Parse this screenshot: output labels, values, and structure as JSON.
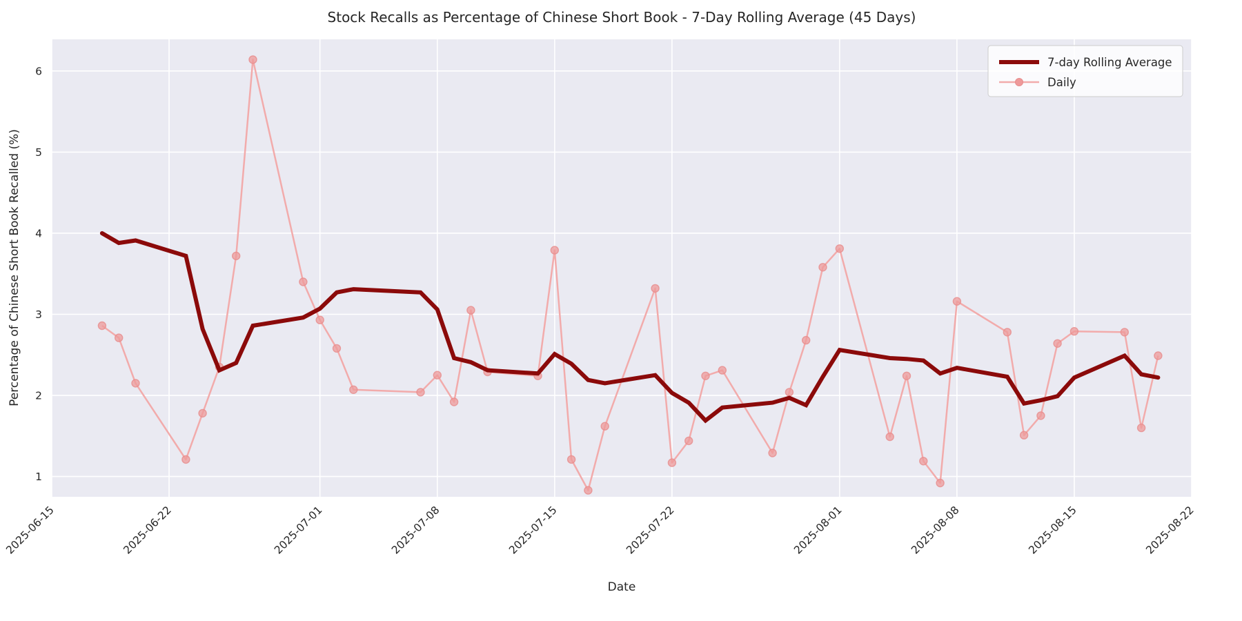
{
  "page": {
    "background": "#ffffff"
  },
  "chart_data": {
    "type": "line",
    "title": "Stock Recalls as Percentage of Chinese Short Book - 7-Day Rolling Average (45 Days)",
    "xlabel": "Date",
    "ylabel": "Percentage of Chinese Short Book Recalled (%)",
    "plot_background": "#eaeaf2",
    "grid": true,
    "grid_color": "#ffffff",
    "legend_position": "upper right",
    "x_axis_start": "2025-06-15",
    "x_axis_end": "2025-08-22",
    "x_tick_labels": [
      "2025-06-15",
      "2025-06-22",
      "2025-07-01",
      "2025-07-08",
      "2025-07-15",
      "2025-07-22",
      "2025-08-01",
      "2025-08-08",
      "2025-08-15",
      "2025-08-22"
    ],
    "y_ticks": [
      1,
      2,
      3,
      4,
      5,
      6
    ],
    "ylim": [
      0.75,
      6.39
    ],
    "dates": [
      "2025-06-18",
      "2025-06-19",
      "2025-06-20",
      "2025-06-23",
      "2025-06-24",
      "2025-06-25",
      "2025-06-26",
      "2025-06-27",
      "2025-06-30",
      "2025-07-01",
      "2025-07-02",
      "2025-07-03",
      "2025-07-07",
      "2025-07-08",
      "2025-07-09",
      "2025-07-10",
      "2025-07-11",
      "2025-07-14",
      "2025-07-15",
      "2025-07-16",
      "2025-07-17",
      "2025-07-18",
      "2025-07-21",
      "2025-07-22",
      "2025-07-23",
      "2025-07-24",
      "2025-07-25",
      "2025-07-28",
      "2025-07-29",
      "2025-07-30",
      "2025-07-31",
      "2025-08-01",
      "2025-08-04",
      "2025-08-05",
      "2025-08-06",
      "2025-08-07",
      "2025-08-08",
      "2025-08-11",
      "2025-08-12",
      "2025-08-13",
      "2025-08-14",
      "2025-08-15",
      "2025-08-18",
      "2025-08-19",
      "2025-08-20"
    ],
    "series": [
      {
        "name": "7-day Rolling Average",
        "color": "#8b0a0a",
        "line_width": 6,
        "markers": false,
        "values": [
          4.0,
          3.88,
          3.91,
          3.72,
          2.82,
          2.31,
          2.4,
          2.86,
          2.96,
          3.07,
          3.27,
          3.31,
          3.27,
          3.06,
          2.46,
          2.41,
          2.31,
          2.27,
          2.51,
          2.39,
          2.19,
          2.15,
          2.25,
          2.03,
          1.91,
          1.69,
          1.85,
          1.91,
          1.97,
          1.88,
          2.23,
          2.56,
          2.46,
          2.45,
          2.43,
          2.27,
          2.34,
          2.23,
          1.9,
          1.94,
          1.99,
          2.22,
          2.49,
          2.26,
          2.22
        ]
      },
      {
        "name": "Daily",
        "color": "#f2abab",
        "marker_color": "#ee9a9a",
        "marker_edge": "#e78c8c",
        "line_width": 2.5,
        "markers": true,
        "values": [
          2.86,
          2.71,
          2.15,
          1.21,
          1.78,
          2.35,
          3.72,
          6.14,
          3.4,
          2.93,
          2.58,
          2.07,
          2.04,
          2.25,
          1.92,
          3.05,
          2.29,
          2.24,
          3.79,
          1.21,
          0.83,
          1.62,
          3.32,
          1.17,
          1.44,
          2.24,
          2.31,
          1.29,
          2.04,
          2.68,
          3.58,
          3.81,
          1.49,
          2.24,
          1.19,
          0.92,
          3.16,
          2.78,
          1.51,
          1.75,
          2.64,
          2.79,
          2.78,
          1.6,
          2.49
        ]
      }
    ]
  }
}
